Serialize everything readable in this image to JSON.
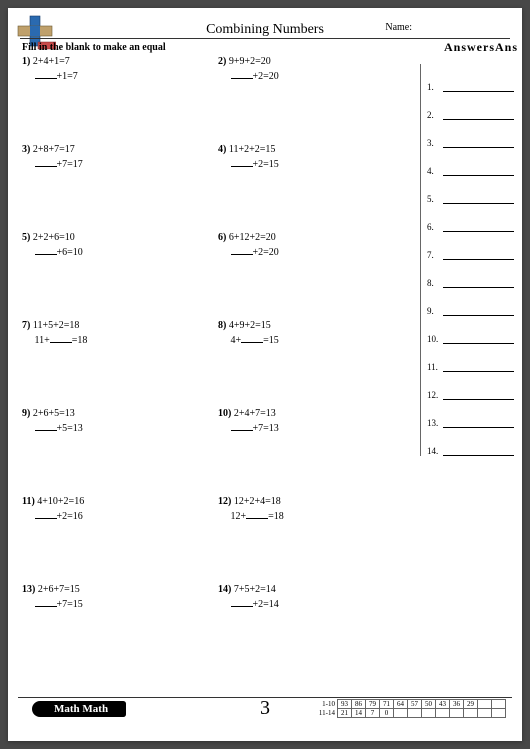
{
  "header": {
    "title": "Combining Numbers",
    "name_label": "Name:",
    "instruction": "Fill in the blank to make an equal"
  },
  "answers_header": "AnswersAns",
  "problems": [
    {
      "n": "1)",
      "eq": "2+4+1=7",
      "blank_eq_prefix": "",
      "blank_eq_suffix": "+1=7"
    },
    {
      "n": "2)",
      "eq": "9+9+2=20",
      "blank_eq_prefix": "",
      "blank_eq_suffix": "+2=20"
    },
    {
      "n": "3)",
      "eq": "2+8+7=17",
      "blank_eq_prefix": "",
      "blank_eq_suffix": "+7=17"
    },
    {
      "n": "4)",
      "eq": "11+2+2=15",
      "blank_eq_prefix": "",
      "blank_eq_suffix": "+2=15"
    },
    {
      "n": "5)",
      "eq": "2+2+6=10",
      "blank_eq_prefix": "",
      "blank_eq_suffix": "+6=10"
    },
    {
      "n": "6)",
      "eq": "6+12+2=20",
      "blank_eq_prefix": "",
      "blank_eq_suffix": "+2=20"
    },
    {
      "n": "7)",
      "eq": "11+5+2=18",
      "blank_eq_prefix": "11+",
      "blank_eq_suffix": "=18"
    },
    {
      "n": "8)",
      "eq": "4+9+2=15",
      "blank_eq_prefix": "4+",
      "blank_eq_suffix": "=15"
    },
    {
      "n": "9)",
      "eq": "2+6+5=13",
      "blank_eq_prefix": "",
      "blank_eq_suffix": "+5=13"
    },
    {
      "n": "10)",
      "eq": "2+4+7=13",
      "blank_eq_prefix": "",
      "blank_eq_suffix": "+7=13"
    },
    {
      "n": "11)",
      "eq": "4+10+2=16",
      "blank_eq_prefix": "",
      "blank_eq_suffix": "+2=16"
    },
    {
      "n": "12)",
      "eq": "12+2+4=18",
      "blank_eq_prefix": "12+",
      "blank_eq_suffix": "=18"
    },
    {
      "n": "13)",
      "eq": "2+6+7=15",
      "blank_eq_prefix": "",
      "blank_eq_suffix": "+7=15"
    },
    {
      "n": "14)",
      "eq": "7+5+2=14",
      "blank_eq_prefix": "",
      "blank_eq_suffix": "+2=14"
    }
  ],
  "answer_slots": [
    "1.",
    "2.",
    "3.",
    "4.",
    "5.",
    "6.",
    "7.",
    "8.",
    "9.",
    "10.",
    "11.",
    "12.",
    "13.",
    "14."
  ],
  "footer": {
    "badge": "Math Math",
    "page_number": "3",
    "score": {
      "row1_label": "1-10",
      "row1": [
        "93",
        "86",
        "79",
        "71",
        "64",
        "57",
        "50",
        "43",
        "36",
        "29",
        "",
        ""
      ],
      "row2_label": "11-14",
      "row2": [
        "21",
        "14",
        "7",
        "0",
        "",
        "",
        "",
        "",
        "",
        "",
        "",
        ""
      ]
    }
  },
  "colors": {
    "plus_v": "#2a6ab0",
    "plus_h": "#bfa06b",
    "minus": "#c84a4a"
  }
}
